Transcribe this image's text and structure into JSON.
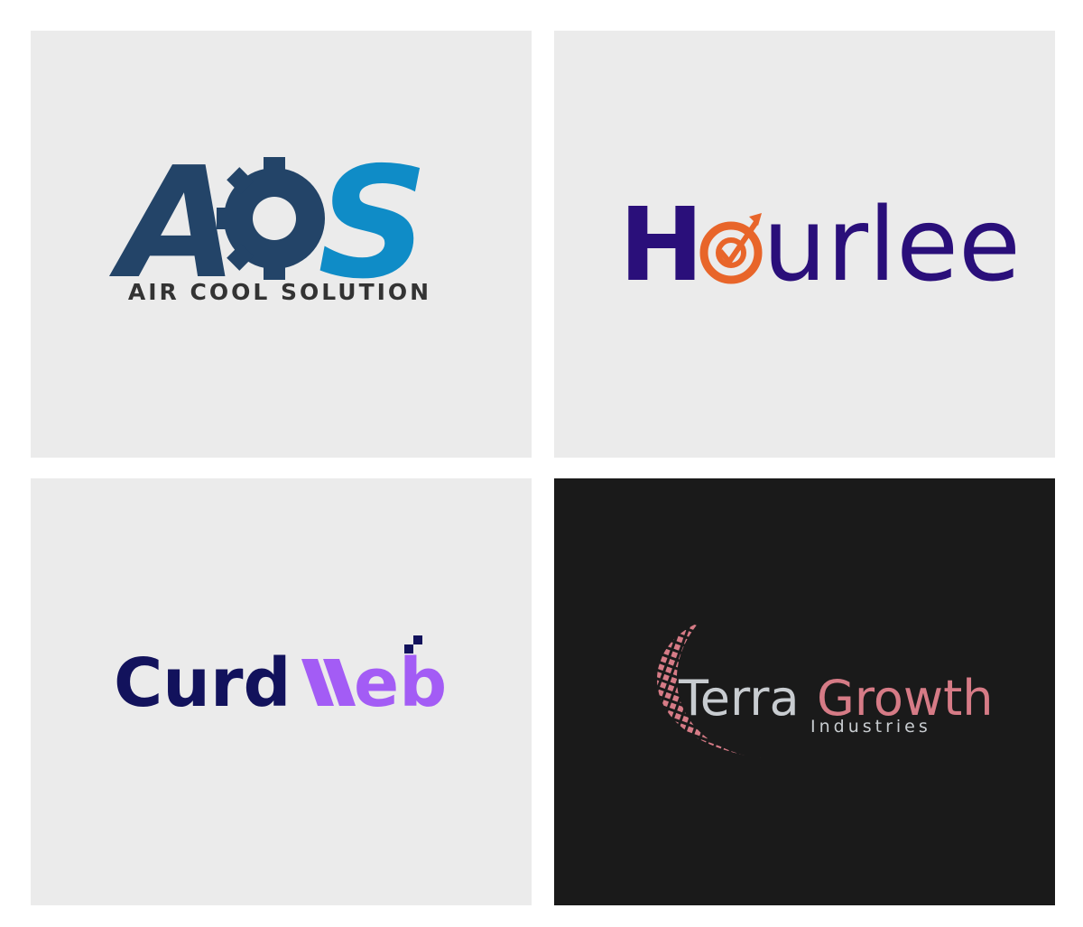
{
  "logos": [
    {
      "mark_left": "A",
      "mark_right": "S",
      "tagline": "AIR COOL SOLUTION"
    },
    {
      "initial": "H",
      "rest": "urlee"
    },
    {
      "first": "Curd",
      "second": "eb"
    },
    {
      "first": "Terra",
      "second": "Growth",
      "tagline": "Industries"
    }
  ]
}
